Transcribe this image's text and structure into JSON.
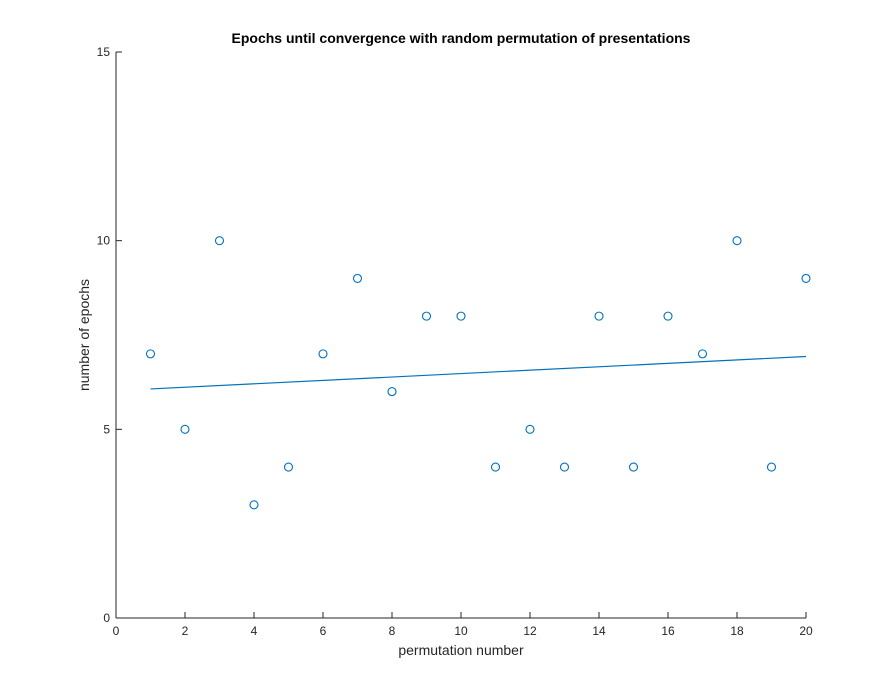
{
  "chart_data": {
    "type": "scatter",
    "title": "Epochs until convergence with random permutation of presentations",
    "xlabel": "permutation number",
    "ylabel": "number of epochs",
    "xlim": [
      0,
      20
    ],
    "ylim": [
      0,
      15
    ],
    "x_ticks": [
      0,
      2,
      4,
      6,
      8,
      10,
      12,
      14,
      16,
      18,
      20
    ],
    "y_ticks": [
      0,
      5,
      10,
      15
    ],
    "grid": false,
    "legend": "none",
    "series": [
      {
        "kind": "points",
        "marker": "circle-open",
        "color": "#0072bd",
        "x": [
          1,
          2,
          3,
          4,
          5,
          6,
          7,
          8,
          9,
          10,
          11,
          12,
          13,
          14,
          15,
          16,
          17,
          18,
          19,
          20
        ],
        "y": [
          7,
          5,
          10,
          3,
          4,
          7,
          9,
          6,
          8,
          8,
          4,
          5,
          4,
          8,
          4,
          8,
          7,
          10,
          4,
          9
        ]
      },
      {
        "kind": "trend-line",
        "color": "#0072bd",
        "x": [
          1,
          20
        ],
        "y": [
          6.07,
          6.93
        ]
      }
    ]
  }
}
